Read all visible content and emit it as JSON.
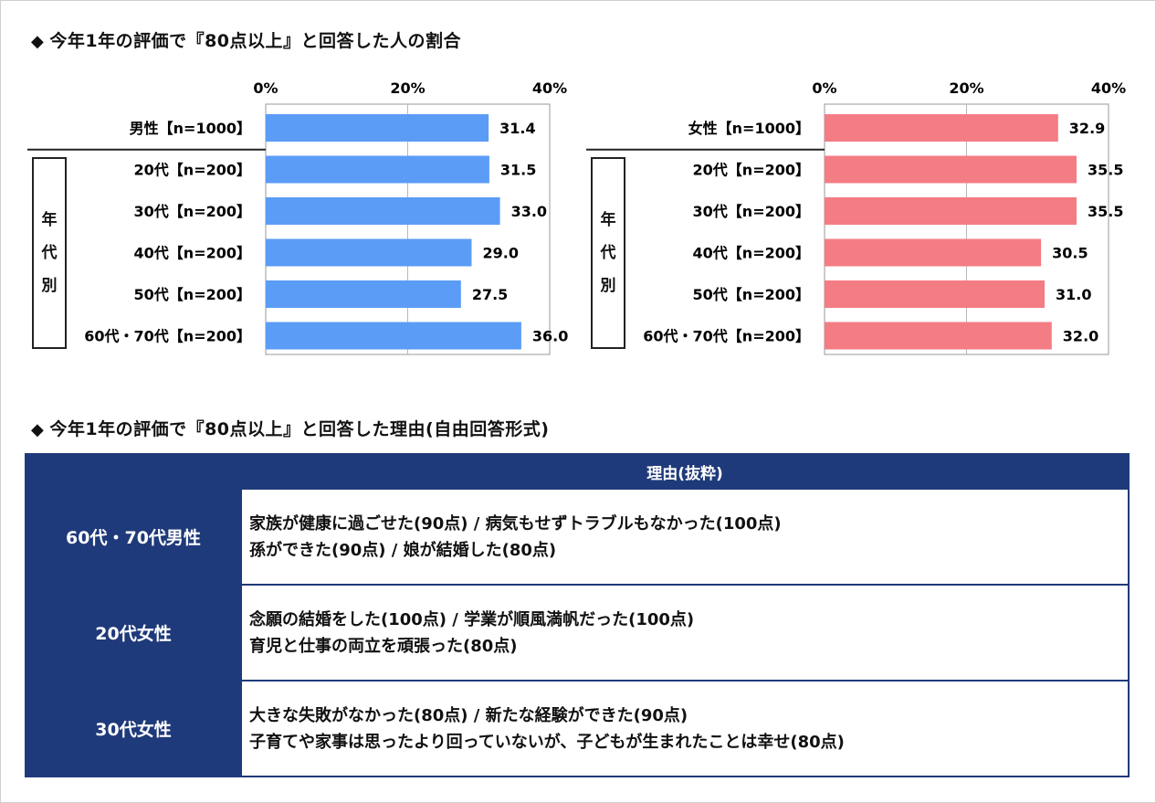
{
  "sections": {
    "chart_title": "今年1年の評価で『80点以上』と回答した人の割合",
    "reasons_title": "今年1年の評価で『80点以上』と回答した理由(自由回答形式)",
    "diamond": "◆"
  },
  "age_group_label": [
    "年",
    "代",
    "別"
  ],
  "chart_data": [
    {
      "type": "bar",
      "orientation": "horizontal",
      "categories": [
        "男性【n=1000】",
        "20代【n=200】",
        "30代【n=200】",
        "40代【n=200】",
        "50代【n=200】",
        "60代・70代【n=200】"
      ],
      "values": [
        31.4,
        31.5,
        33.0,
        29.0,
        27.5,
        36.0
      ],
      "value_labels": [
        "31.4",
        "31.5",
        "33.0",
        "29.0",
        "27.5",
        "36.0"
      ],
      "xlim": [
        0,
        40
      ],
      "xticks": [
        "0%",
        "20%",
        "40%"
      ],
      "color": "#5b9cf6",
      "grid": true
    },
    {
      "type": "bar",
      "orientation": "horizontal",
      "categories": [
        "女性【n=1000】",
        "20代【n=200】",
        "30代【n=200】",
        "40代【n=200】",
        "50代【n=200】",
        "60代・70代【n=200】"
      ],
      "values": [
        32.9,
        35.5,
        35.5,
        30.5,
        31.0,
        32.0
      ],
      "value_labels": [
        "32.9",
        "35.5",
        "35.5",
        "30.5",
        "31.0",
        "32.0"
      ],
      "xlim": [
        0,
        40
      ],
      "xticks": [
        "0%",
        "20%",
        "40%"
      ],
      "color": "#f47c84",
      "grid": true
    }
  ],
  "reasons_table": {
    "header": "理由(抜粋)",
    "rows": [
      {
        "group": "60代・70代男性",
        "line1": "家族が健康に過ごせた(90点) / 病気もせずトラブルもなかった(100点)",
        "line2": "孫ができた(90点) / 娘が結婚した(80点)"
      },
      {
        "group": "20代女性",
        "line1": "念願の結婚をした(100点) / 学業が順風満帆だった(100点)",
        "line2": "育児と仕事の両立を頑張った(80点)"
      },
      {
        "group": "30代女性",
        "line1": "大きな失敗がなかった(80点) / 新たな経験ができた(90点)",
        "line2": "子育てや家事は思ったより回っていないが、子どもが生まれたことは幸せ(80点)"
      }
    ]
  }
}
